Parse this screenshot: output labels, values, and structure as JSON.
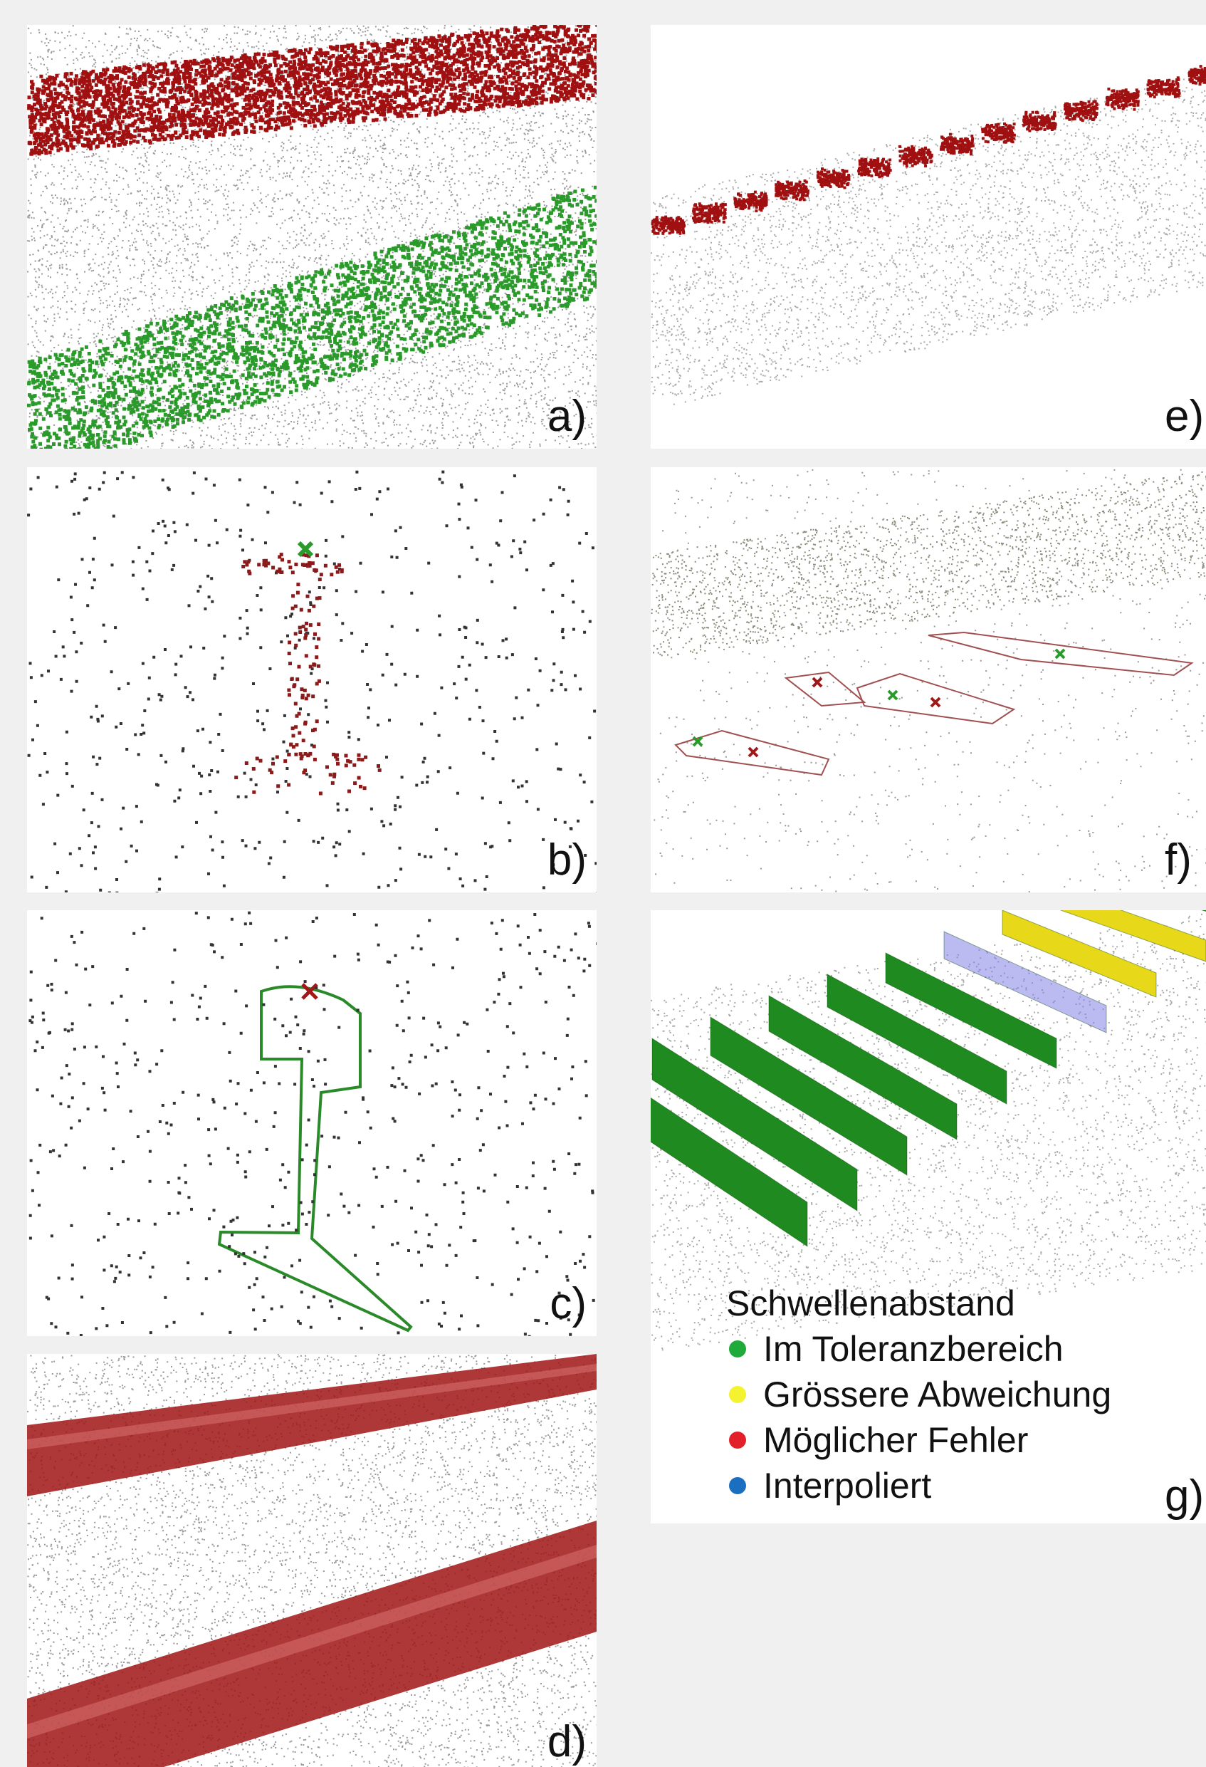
{
  "panels": [
    {
      "label": "a)"
    },
    {
      "label": "b)"
    },
    {
      "label": "c)"
    },
    {
      "label": "d)"
    },
    {
      "label": "e)"
    },
    {
      "label": "f)"
    },
    {
      "label": "g)"
    }
  ],
  "legend": {
    "title": "Schwellenabstand",
    "items": [
      "Im Toleranzbereich",
      "Grössere Abweichung",
      "Möglicher Fehler",
      "Interpoliert"
    ]
  }
}
